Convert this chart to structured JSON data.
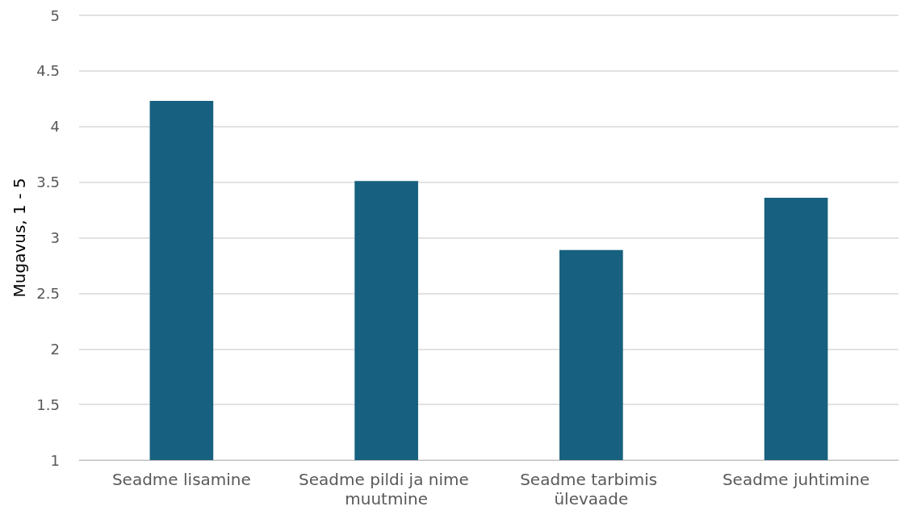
{
  "chart_data": {
    "type": "bar",
    "ylabel": "Mugavus, 1 - 5",
    "categories": [
      "Seadme lisamine",
      "Seadme pildi ja nime muutmine",
      "Seadme tarbimis ülevaade",
      "Seadme juhtimine"
    ],
    "values": [
      4.23,
      3.51,
      2.89,
      3.36
    ],
    "color": "#17607f",
    "ylim": [
      1,
      5
    ],
    "yticks": [
      1,
      1.5,
      2,
      2.5,
      3,
      3.5,
      4,
      4.5,
      5
    ],
    "grid": "y"
  }
}
